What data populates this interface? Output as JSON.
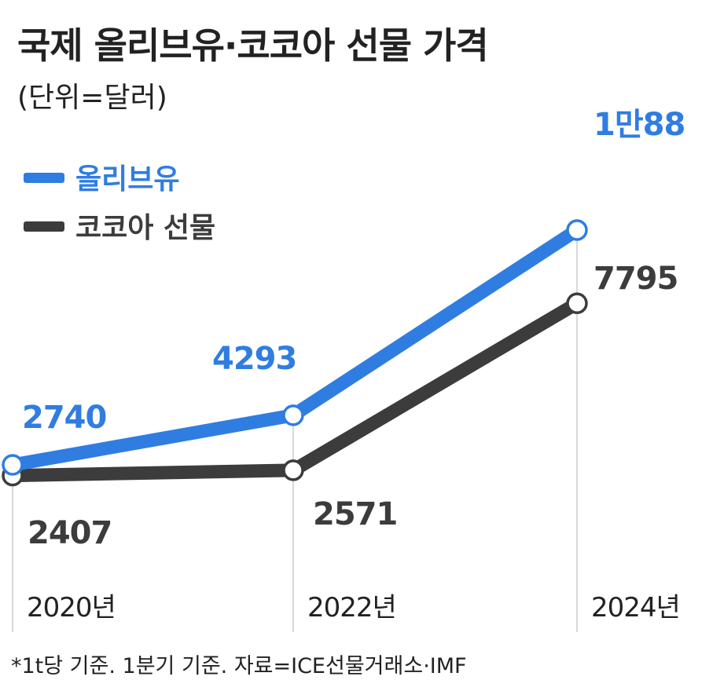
{
  "header": {
    "title": "국제 올리브유·코코아 선물 가격",
    "unit": "(단위=달러)"
  },
  "footer": {
    "source": "*1t당 기준. 1분기 기준. 자료=ICE선물거래소·IMF"
  },
  "colors": {
    "olive": "#2f7de1",
    "cocoa": "#3c3c3c",
    "gridline": "#cccccc",
    "text": "#222222"
  },
  "chart_data": {
    "type": "line",
    "title": "국제 올리브유·코코아 선물 가격",
    "subtitle": "(단위=달러)",
    "categories": [
      "2020년",
      "2022년",
      "2024년"
    ],
    "series": [
      {
        "name": "올리브유",
        "values": [
          2740,
          4293,
          10088
        ],
        "labels": [
          "2740",
          "4293",
          "1만88"
        ],
        "color": "#2f7de1"
      },
      {
        "name": "코코아 선물",
        "values": [
          2407,
          2571,
          7795
        ],
        "labels": [
          "2407",
          "2571",
          "7795"
        ],
        "color": "#3c3c3c"
      }
    ],
    "legend": "top-left",
    "grid": false
  }
}
